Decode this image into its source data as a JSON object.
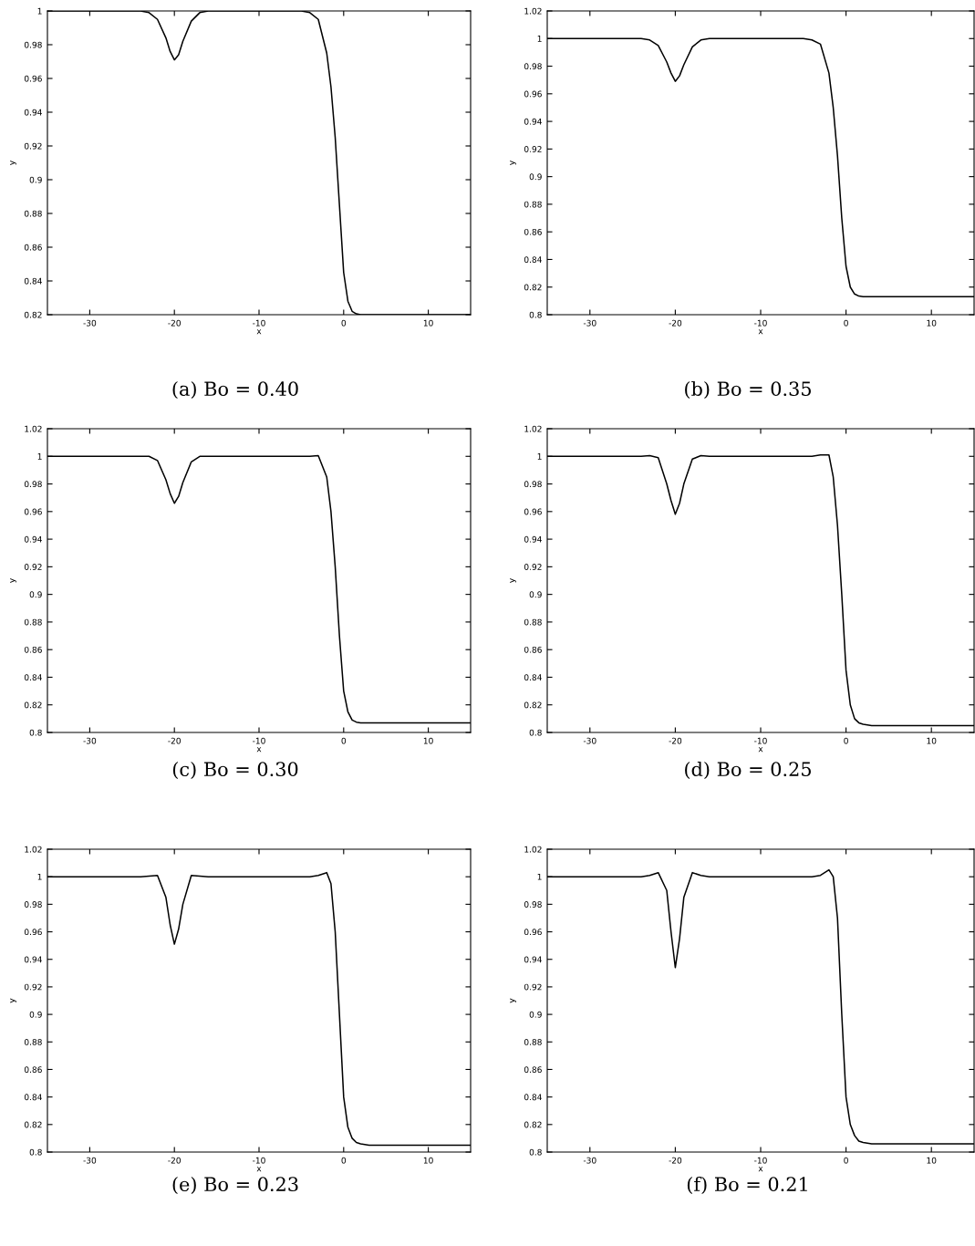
{
  "chart_data": [
    {
      "type": "line",
      "title": "(a) Bo = 0.40",
      "xlabel": "x",
      "ylabel": "y",
      "color": "#000000",
      "xlim": [
        -35,
        15
      ],
      "ylim": [
        0.82,
        1
      ],
      "xticks": [
        -30,
        -20,
        -10,
        0,
        10
      ],
      "yticks": [
        0.82,
        0.84,
        0.86,
        0.88,
        0.9,
        0.92,
        0.94,
        0.96,
        0.98,
        1
      ],
      "x": [
        -35,
        -25,
        -24,
        -23,
        -22,
        -21,
        -20.5,
        -20,
        -19.5,
        -19,
        -18,
        -17,
        -16,
        -14,
        -10,
        -5,
        -4,
        -3,
        -2,
        -1.5,
        -1,
        -0.5,
        0,
        0.5,
        1,
        1.5,
        2,
        3,
        5,
        10,
        15
      ],
      "values": [
        1,
        1,
        1,
        0.999,
        0.995,
        0.984,
        0.976,
        0.971,
        0.974,
        0.982,
        0.994,
        0.999,
        1,
        1,
        1,
        1,
        0.999,
        0.995,
        0.975,
        0.955,
        0.925,
        0.885,
        0.845,
        0.828,
        0.822,
        0.8205,
        0.82,
        0.82,
        0.82,
        0.82,
        0.82
      ]
    },
    {
      "type": "line",
      "title": "(b) Bo = 0.35",
      "xlabel": "x",
      "ylabel": "y",
      "color": "#000000",
      "xlim": [
        -35,
        15
      ],
      "ylim": [
        0.8,
        1.02
      ],
      "xticks": [
        -30,
        -20,
        -10,
        0,
        10
      ],
      "yticks": [
        0.8,
        0.82,
        0.84,
        0.86,
        0.88,
        0.9,
        0.92,
        0.94,
        0.96,
        0.98,
        1,
        1.02
      ],
      "x": [
        -35,
        -25,
        -24,
        -23,
        -22,
        -21,
        -20.5,
        -20,
        -19.5,
        -19,
        -18,
        -17,
        -16,
        -14,
        -10,
        -5,
        -4,
        -3,
        -2,
        -1.5,
        -1,
        -0.5,
        0,
        0.5,
        1,
        1.5,
        2,
        3,
        5,
        10,
        15
      ],
      "values": [
        1,
        1,
        1,
        0.999,
        0.995,
        0.983,
        0.975,
        0.969,
        0.973,
        0.981,
        0.994,
        0.999,
        1,
        1,
        1,
        1,
        0.999,
        0.996,
        0.975,
        0.95,
        0.915,
        0.87,
        0.835,
        0.82,
        0.815,
        0.8135,
        0.813,
        0.813,
        0.813,
        0.813,
        0.813
      ]
    },
    {
      "type": "line",
      "title": "(c) Bo = 0.30",
      "xlabel": "x",
      "ylabel": "y",
      "color": "#000000",
      "xlim": [
        -35,
        15
      ],
      "ylim": [
        0.8,
        1.02
      ],
      "xticks": [
        -30,
        -20,
        -10,
        0,
        10
      ],
      "yticks": [
        0.8,
        0.82,
        0.84,
        0.86,
        0.88,
        0.9,
        0.92,
        0.94,
        0.96,
        0.98,
        1,
        1.02
      ],
      "x": [
        -35,
        -25,
        -24,
        -23,
        -22,
        -21,
        -20.5,
        -20,
        -19.5,
        -19,
        -18,
        -17,
        -16,
        -14,
        -10,
        -5,
        -4,
        -3,
        -2,
        -1.5,
        -1,
        -0.5,
        0,
        0.5,
        1,
        1.5,
        2,
        3,
        5,
        10,
        15
      ],
      "values": [
        1,
        1,
        1,
        1,
        0.997,
        0.983,
        0.973,
        0.966,
        0.971,
        0.981,
        0.996,
        1,
        1,
        1,
        1,
        1,
        1,
        1.0005,
        0.985,
        0.96,
        0.92,
        0.87,
        0.83,
        0.815,
        0.809,
        0.8075,
        0.807,
        0.807,
        0.807,
        0.807,
        0.807
      ]
    },
    {
      "type": "line",
      "title": "(d) Bo = 0.25",
      "xlabel": "x",
      "ylabel": "y",
      "color": "#000000",
      "xlim": [
        -35,
        15
      ],
      "ylim": [
        0.8,
        1.02
      ],
      "xticks": [
        -30,
        -20,
        -10,
        0,
        10
      ],
      "yticks": [
        0.8,
        0.82,
        0.84,
        0.86,
        0.88,
        0.9,
        0.92,
        0.94,
        0.96,
        0.98,
        1,
        1.02
      ],
      "x": [
        -35,
        -25,
        -24,
        -23,
        -22,
        -21,
        -20.5,
        -20,
        -19.5,
        -19,
        -18,
        -17,
        -16,
        -14,
        -10,
        -5,
        -4,
        -3,
        -2,
        -1.5,
        -1,
        -0.5,
        0,
        0.5,
        1,
        1.5,
        2,
        3,
        5,
        10,
        15
      ],
      "values": [
        1,
        1,
        1,
        1.0005,
        0.999,
        0.98,
        0.968,
        0.958,
        0.966,
        0.98,
        0.998,
        1.0005,
        1,
        1,
        1,
        1,
        1,
        1.001,
        1.001,
        0.985,
        0.95,
        0.9,
        0.845,
        0.82,
        0.81,
        0.807,
        0.806,
        0.805,
        0.805,
        0.805,
        0.805
      ]
    },
    {
      "type": "line",
      "title": "(e) Bo = 0.23",
      "xlabel": "x",
      "ylabel": "y",
      "color": "#000000",
      "xlim": [
        -35,
        15
      ],
      "ylim": [
        0.8,
        1.02
      ],
      "xticks": [
        -30,
        -20,
        -10,
        0,
        10
      ],
      "yticks": [
        0.8,
        0.82,
        0.84,
        0.86,
        0.88,
        0.9,
        0.92,
        0.94,
        0.96,
        0.98,
        1,
        1.02
      ],
      "x": [
        -35,
        -25,
        -24,
        -23,
        -22,
        -21,
        -20.5,
        -20,
        -19.5,
        -19,
        -18,
        -17,
        -16,
        -14,
        -10,
        -5,
        -4,
        -3,
        -2,
        -1.5,
        -1,
        -0.5,
        0,
        0.5,
        1,
        1.5,
        2,
        3,
        5,
        10,
        15
      ],
      "values": [
        1,
        1,
        1,
        1.0005,
        1.001,
        0.985,
        0.965,
        0.951,
        0.962,
        0.98,
        1.001,
        1.0005,
        1,
        1,
        1,
        1,
        1,
        1.001,
        1.003,
        0.995,
        0.96,
        0.9,
        0.84,
        0.818,
        0.81,
        0.807,
        0.806,
        0.805,
        0.805,
        0.805,
        0.805
      ]
    },
    {
      "type": "line",
      "title": "(f) Bo = 0.21",
      "xlabel": "x",
      "ylabel": "y",
      "color": "#000000",
      "xlim": [
        -35,
        15
      ],
      "ylim": [
        0.8,
        1.02
      ],
      "xticks": [
        -30,
        -20,
        -10,
        0,
        10
      ],
      "yticks": [
        0.8,
        0.82,
        0.84,
        0.86,
        0.88,
        0.9,
        0.92,
        0.94,
        0.96,
        0.98,
        1,
        1.02
      ],
      "x": [
        -35,
        -25,
        -24,
        -23,
        -22,
        -21,
        -20.5,
        -20,
        -19.5,
        -19,
        -18,
        -17,
        -16,
        -14,
        -10,
        -5,
        -4,
        -3,
        -2,
        -1.5,
        -1,
        -0.5,
        0,
        0.5,
        1,
        1.5,
        2,
        3,
        5,
        10,
        15
      ],
      "values": [
        1,
        1,
        1,
        1.001,
        1.003,
        0.99,
        0.96,
        0.934,
        0.955,
        0.985,
        1.003,
        1.001,
        1,
        1,
        1,
        1,
        1,
        1.001,
        1.005,
        1.0,
        0.97,
        0.9,
        0.84,
        0.82,
        0.812,
        0.808,
        0.807,
        0.806,
        0.806,
        0.806,
        0.806
      ]
    }
  ]
}
